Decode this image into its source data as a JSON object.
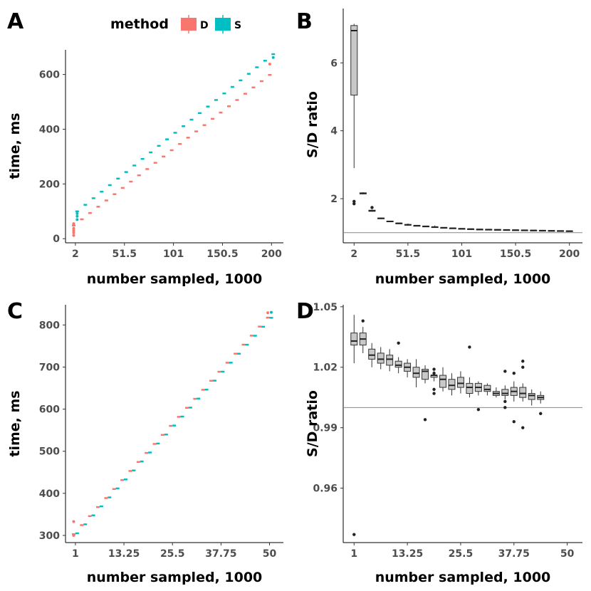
{
  "legend": {
    "title": "method",
    "items": [
      {
        "key": "D",
        "label": "D",
        "color": "#F8766D"
      },
      {
        "key": "S",
        "label": "S",
        "color": "#00BFC4"
      }
    ]
  },
  "chart_data": [
    {
      "panel": "A",
      "type": "scatter",
      "xlabel": "number sampled, 1000",
      "ylabel": "time, ms",
      "xlim": [
        -8,
        212
      ],
      "ylim": [
        -15,
        690
      ],
      "xticks": [
        2,
        51.5,
        101,
        150.5,
        200
      ],
      "xtick_labels": [
        "2",
        "51.5",
        "101",
        "150.5",
        "200"
      ],
      "yticks": [
        0,
        200,
        400,
        600
      ],
      "ytick_labels": [
        "0",
        "200",
        "400",
        "600"
      ],
      "x_start": 2,
      "x_step": 8.25,
      "n_points": 25,
      "D": {
        "base": 48,
        "slope": 2.78
      },
      "S": {
        "base": 100,
        "slope": 2.9
      },
      "extra_points": [
        {
          "series": "D",
          "x": 2,
          "y": 12
        },
        {
          "series": "D",
          "x": 2,
          "y": 22
        },
        {
          "series": "D",
          "x": 2,
          "y": 30
        },
        {
          "series": "D",
          "x": 2,
          "y": 38
        },
        {
          "series": "D",
          "x": 2,
          "y": 55
        },
        {
          "series": "S",
          "x": 2,
          "y": 70
        },
        {
          "series": "S",
          "x": 2,
          "y": 82
        },
        {
          "series": "S",
          "x": 2,
          "y": 92
        },
        {
          "series": "S",
          "x": 200,
          "y": 662
        },
        {
          "series": "D",
          "x": 200,
          "y": 638
        }
      ]
    },
    {
      "panel": "B",
      "type": "boxplot",
      "xlabel": "number sampled, 1000",
      "ylabel": "S/D ratio",
      "xlim": [
        -8,
        212
      ],
      "ylim": [
        0.7,
        7.6
      ],
      "reference_line": 1,
      "xticks": [
        2,
        51.5,
        101,
        150.5,
        200
      ],
      "xtick_labels": [
        "2",
        "51.5",
        "101",
        "150.5",
        "200"
      ],
      "yticks": [
        2,
        4,
        6
      ],
      "ytick_labels": [
        "2",
        "4",
        "6"
      ],
      "boxes": [
        {
          "x": 2,
          "min": 2.9,
          "q1": 5.05,
          "med": 6.95,
          "q3": 7.1,
          "max": 7.15,
          "outliers": [
            1.85,
            1.92
          ]
        },
        {
          "x": 10.25,
          "min": 2.13,
          "q1": 2.14,
          "med": 2.16,
          "q3": 2.17,
          "max": 2.19,
          "outliers": []
        },
        {
          "x": 18.5,
          "min": 1.62,
          "q1": 1.63,
          "med": 1.64,
          "q3": 1.66,
          "max": 1.68,
          "outliers": [
            1.74
          ]
        },
        {
          "x": 26.75,
          "min": 1.4,
          "q1": 1.41,
          "med": 1.42,
          "q3": 1.43,
          "max": 1.44,
          "outliers": []
        },
        {
          "x": 35,
          "min": 1.31,
          "q1": 1.32,
          "med": 1.33,
          "q3": 1.34,
          "max": 1.35,
          "outliers": []
        },
        {
          "x": 43.25,
          "min": 1.25,
          "q1": 1.265,
          "med": 1.275,
          "q3": 1.28,
          "max": 1.29,
          "outliers": []
        },
        {
          "x": 51.5,
          "min": 1.2,
          "q1": 1.22,
          "med": 1.23,
          "q3": 1.24,
          "max": 1.27,
          "outliers": []
        },
        {
          "x": 59.75,
          "min": 1.19,
          "q1": 1.2,
          "med": 1.205,
          "q3": 1.21,
          "max": 1.22,
          "outliers": []
        },
        {
          "x": 68,
          "min": 1.17,
          "q1": 1.18,
          "med": 1.185,
          "q3": 1.19,
          "max": 1.2,
          "outliers": []
        },
        {
          "x": 76.25,
          "min": 1.14,
          "q1": 1.16,
          "med": 1.165,
          "q3": 1.17,
          "max": 1.21,
          "outliers": []
        },
        {
          "x": 84.5,
          "min": 1.13,
          "q1": 1.14,
          "med": 1.145,
          "q3": 1.15,
          "max": 1.16,
          "outliers": []
        },
        {
          "x": 92.75,
          "min": 1.12,
          "q1": 1.125,
          "med": 1.13,
          "q3": 1.135,
          "max": 1.14,
          "outliers": []
        },
        {
          "x": 101,
          "min": 1.1,
          "q1": 1.11,
          "med": 1.115,
          "q3": 1.12,
          "max": 1.13,
          "outliers": []
        },
        {
          "x": 109.25,
          "min": 1.09,
          "q1": 1.1,
          "med": 1.105,
          "q3": 1.11,
          "max": 1.12,
          "outliers": []
        },
        {
          "x": 117.5,
          "min": 1.08,
          "q1": 1.09,
          "med": 1.095,
          "q3": 1.1,
          "max": 1.11,
          "outliers": []
        },
        {
          "x": 125.75,
          "min": 1.075,
          "q1": 1.085,
          "med": 1.09,
          "q3": 1.095,
          "max": 1.1,
          "outliers": []
        },
        {
          "x": 134,
          "min": 1.07,
          "q1": 1.08,
          "med": 1.085,
          "q3": 1.09,
          "max": 1.095,
          "outliers": []
        },
        {
          "x": 142.25,
          "min": 1.065,
          "q1": 1.075,
          "med": 1.08,
          "q3": 1.085,
          "max": 1.09,
          "outliers": []
        },
        {
          "x": 150.5,
          "min": 1.06,
          "q1": 1.07,
          "med": 1.075,
          "q3": 1.08,
          "max": 1.085,
          "outliers": []
        },
        {
          "x": 158.75,
          "min": 1.055,
          "q1": 1.065,
          "med": 1.07,
          "q3": 1.075,
          "max": 1.08,
          "outliers": []
        },
        {
          "x": 167,
          "min": 1.05,
          "q1": 1.06,
          "med": 1.065,
          "q3": 1.07,
          "max": 1.075,
          "outliers": []
        },
        {
          "x": 175.25,
          "min": 1.045,
          "q1": 1.055,
          "med": 1.06,
          "q3": 1.065,
          "max": 1.07,
          "outliers": []
        },
        {
          "x": 183.5,
          "min": 1.04,
          "q1": 1.05,
          "med": 1.055,
          "q3": 1.06,
          "max": 1.065,
          "outliers": []
        },
        {
          "x": 191.75,
          "min": 1.035,
          "q1": 1.045,
          "med": 1.05,
          "q3": 1.055,
          "max": 1.06,
          "outliers": []
        },
        {
          "x": 200,
          "min": 1.03,
          "q1": 1.04,
          "med": 1.045,
          "q3": 1.05,
          "max": 1.055,
          "outliers": []
        }
      ]
    },
    {
      "panel": "C",
      "type": "scatter",
      "xlabel": "number sampled, 1000",
      "ylabel": "time, ms",
      "xlim": [
        -1.5,
        53.5
      ],
      "ylim": [
        283,
        848
      ],
      "xticks": [
        1,
        13.25,
        25.5,
        37.75,
        50
      ],
      "xtick_labels": [
        "1",
        "13.25",
        "25.5",
        "37.75",
        "50"
      ],
      "yticks": [
        300,
        400,
        500,
        600,
        700,
        800
      ],
      "ytick_labels": [
        "300",
        "400",
        "500",
        "600",
        "700",
        "800"
      ],
      "x_start": 1,
      "x_step": 2.0417,
      "n_points": 25,
      "D": {
        "base": 303,
        "slope": 10.5
      },
      "S": {
        "base": 305,
        "slope": 10.45
      },
      "extra_points": [
        {
          "series": "D",
          "x": 1,
          "y": 333
        },
        {
          "series": "D",
          "x": 1,
          "y": 300
        },
        {
          "series": "D",
          "x": 50,
          "y": 829
        },
        {
          "series": "S",
          "x": 50,
          "y": 830
        }
      ]
    },
    {
      "panel": "D",
      "type": "boxplot",
      "xlabel": "number sampled, 1000",
      "ylabel": "S/D ratio",
      "xlim": [
        -1.5,
        53.5
      ],
      "ylim": [
        0.933,
        1.051
      ],
      "reference_line": 1,
      "xticks": [
        1,
        13.25,
        25.5,
        37.75,
        50
      ],
      "xtick_labels": [
        "1",
        "13.25",
        "25.5",
        "37.75",
        "50"
      ],
      "yticks": [
        0.96,
        0.99,
        1.02,
        1.05
      ],
      "ytick_labels": [
        "0.96",
        "0.99",
        "1.02",
        "1.05"
      ],
      "boxes": [
        {
          "x": 1,
          "min": 1.022,
          "q1": 1.031,
          "med": 1.033,
          "q3": 1.037,
          "max": 1.046,
          "outliers": [
            0.937
          ]
        },
        {
          "x": 3.04,
          "min": 1.027,
          "q1": 1.031,
          "med": 1.034,
          "q3": 1.037,
          "max": 1.04,
          "outliers": [
            1.043
          ]
        },
        {
          "x": 5.08,
          "min": 1.02,
          "q1": 1.024,
          "med": 1.026,
          "q3": 1.029,
          "max": 1.032,
          "outliers": []
        },
        {
          "x": 7.13,
          "min": 1.019,
          "q1": 1.022,
          "med": 1.024,
          "q3": 1.027,
          "max": 1.03,
          "outliers": []
        },
        {
          "x": 9.17,
          "min": 1.018,
          "q1": 1.021,
          "med": 1.024,
          "q3": 1.026,
          "max": 1.029,
          "outliers": []
        },
        {
          "x": 11.21,
          "min": 1.017,
          "q1": 1.02,
          "med": 1.021,
          "q3": 1.023,
          "max": 1.025,
          "outliers": [
            1.032
          ]
        },
        {
          "x": 13.25,
          "min": 1.015,
          "q1": 1.018,
          "med": 1.02,
          "q3": 1.022,
          "max": 1.024,
          "outliers": []
        },
        {
          "x": 15.29,
          "min": 1.01,
          "q1": 1.015,
          "med": 1.017,
          "q3": 1.02,
          "max": 1.024,
          "outliers": []
        },
        {
          "x": 17.33,
          "min": 1.012,
          "q1": 1.014,
          "med": 1.018,
          "q3": 1.019,
          "max": 1.021,
          "outliers": [
            0.994
          ]
        },
        {
          "x": 19.38,
          "min": 1.013,
          "q1": 1.015,
          "med": 1.016,
          "q3": 1.016,
          "max": 1.018,
          "outliers": [
            1.007,
            1.009,
            1.017,
            1.019
          ]
        },
        {
          "x": 21.42,
          "min": 1.008,
          "q1": 1.01,
          "med": 1.014,
          "q3": 1.016,
          "max": 1.02,
          "outliers": []
        },
        {
          "x": 23.46,
          "min": 1.006,
          "q1": 1.009,
          "med": 1.011,
          "q3": 1.014,
          "max": 1.017,
          "outliers": []
        },
        {
          "x": 25.5,
          "min": 1.007,
          "q1": 1.01,
          "med": 1.012,
          "q3": 1.015,
          "max": 1.018,
          "outliers": []
        },
        {
          "x": 27.54,
          "min": 1.005,
          "q1": 1.007,
          "med": 1.01,
          "q3": 1.012,
          "max": 1.015,
          "outliers": [
            1.03
          ]
        },
        {
          "x": 29.58,
          "min": 1.006,
          "q1": 1.008,
          "med": 1.01,
          "q3": 1.012,
          "max": 1.013,
          "outliers": [
            0.999
          ]
        },
        {
          "x": 31.63,
          "min": 1.006,
          "q1": 1.008,
          "med": 1.009,
          "q3": 1.011,
          "max": 1.012,
          "outliers": []
        },
        {
          "x": 33.67,
          "min": 1.005,
          "q1": 1.006,
          "med": 1.007,
          "q3": 1.008,
          "max": 1.01,
          "outliers": []
        },
        {
          "x": 35.71,
          "min": 1.004,
          "q1": 1.006,
          "med": 1.007,
          "q3": 1.009,
          "max": 1.011,
          "outliers": [
            1.018,
            1.003,
            1.0
          ]
        },
        {
          "x": 37.75,
          "min": 1.003,
          "q1": 1.006,
          "med": 1.008,
          "q3": 1.01,
          "max": 1.013,
          "outliers": [
            1.017,
            0.993
          ]
        },
        {
          "x": 39.79,
          "min": 1.003,
          "q1": 1.005,
          "med": 1.007,
          "q3": 1.01,
          "max": 1.012,
          "outliers": [
            0.99,
            1.02,
            1.023
          ]
        },
        {
          "x": 41.83,
          "min": 1.001,
          "q1": 1.004,
          "med": 1.006,
          "q3": 1.007,
          "max": 1.009,
          "outliers": []
        },
        {
          "x": 43.88,
          "min": 1.002,
          "q1": 1.004,
          "med": 1.005,
          "q3": 1.006,
          "max": 1.008,
          "outliers": [
            0.997
          ]
        }
      ]
    }
  ]
}
